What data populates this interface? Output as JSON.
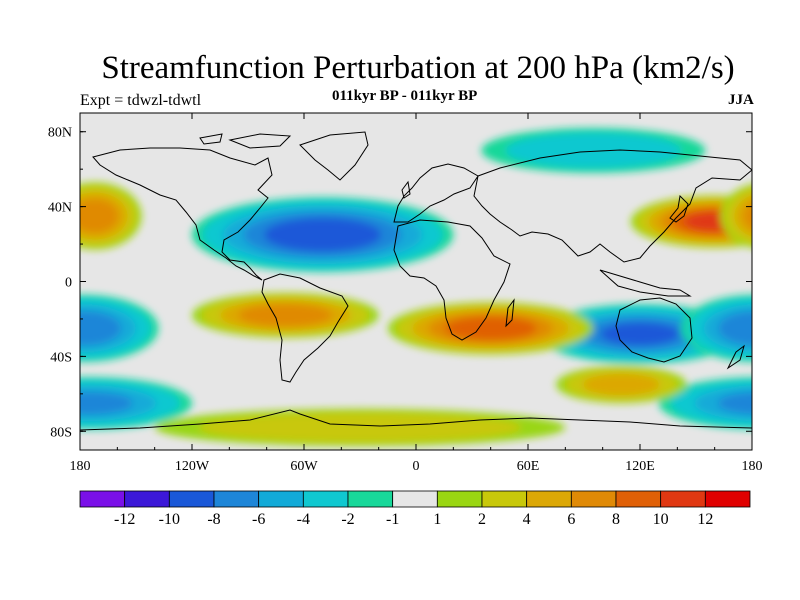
{
  "title": "Streamfunction Perturbation at 200 hPa (km2/s)",
  "experiment": "Expt = tdwzl-tdwtl",
  "subtitle": "011kyr BP - 011kyr BP",
  "season": "JJA",
  "map": {
    "lat_labels": [
      "80N",
      "40N",
      "0",
      "40S",
      "80S"
    ],
    "lat_values": [
      80,
      40,
      0,
      -40,
      -80
    ],
    "lon_labels": [
      "180",
      "120W",
      "60W",
      "0",
      "60E",
      "120E",
      "180"
    ],
    "lon_values": [
      -180,
      -120,
      -60,
      0,
      60,
      120,
      180
    ],
    "lat_range": [
      -90,
      90
    ],
    "lon_range": [
      -180,
      180
    ]
  },
  "colorbar": {
    "labels": [
      "-12",
      "-10",
      "-8",
      "-6",
      "-4",
      "-2",
      "-1",
      "1",
      "2",
      "4",
      "6",
      "8",
      "10",
      "12"
    ],
    "colors": [
      "#7a10e8",
      "#3c18d8",
      "#1a58d8",
      "#1e86d8",
      "#12aad8",
      "#10c8d0",
      "#18d89a",
      "#e6e6e6",
      "#9ad612",
      "#c8c80a",
      "#dca806",
      "#e08a06",
      "#e06006",
      "#e03812",
      "#e00000"
    ]
  },
  "chart_data": {
    "type": "contour-map",
    "title": "Streamfunction Perturbation at 200 hPa (km2/s)",
    "units": "km2/s",
    "levels": [
      -12,
      -10,
      -8,
      -6,
      -4,
      -2,
      -1,
      1,
      2,
      4,
      6,
      8,
      10,
      12
    ],
    "approx_extrema": [
      {
        "region": "North Atlantic",
        "lat": 25,
        "lon": -50,
        "value": -9
      },
      {
        "region": "Australia / Indian Ocean",
        "lat": -28,
        "lon": 120,
        "value": -8
      },
      {
        "region": "Pacific near 180W",
        "lat": -25,
        "lon": -178,
        "value": -7
      },
      {
        "region": "Southern Pacific",
        "lat": -65,
        "lon": -175,
        "value": -6
      },
      {
        "region": "Arctic / N Asia",
        "lat": 70,
        "lon": 95,
        "value": -3
      },
      {
        "region": "West Pacific off Japan",
        "lat": 32,
        "lon": 160,
        "value": 10
      },
      {
        "region": "Southern Africa / Indian Ocean",
        "lat": -25,
        "lon": 40,
        "value": 9
      },
      {
        "region": "South America / S Atlantic",
        "lat": -18,
        "lon": -70,
        "value": 7
      },
      {
        "region": "Dateline North",
        "lat": 35,
        "lon": -172,
        "value": 7
      },
      {
        "region": "South Indian Ocean",
        "lat": -55,
        "lon": 110,
        "value": 5
      },
      {
        "region": "Antarctica",
        "lat": -78,
        "lon": -30,
        "value": 3
      }
    ]
  }
}
